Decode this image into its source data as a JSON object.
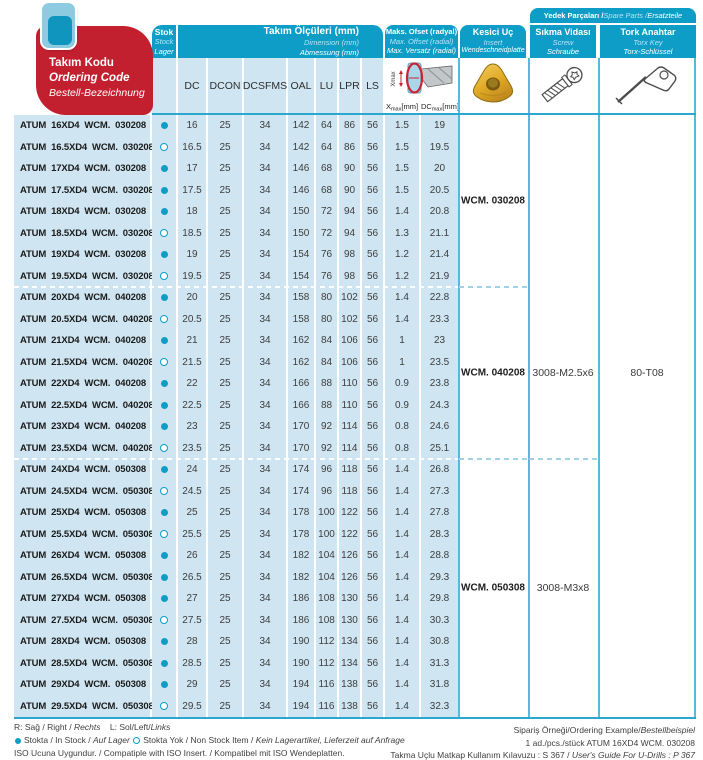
{
  "header": {
    "ordering_code": {
      "line1": "Takım Kodu",
      "line2": "Ordering Code",
      "line3": "Bestell-Bezeichnung"
    },
    "stock": {
      "line1": "Stok",
      "line2": "Stock",
      "line3": "Lager"
    },
    "dimensions": {
      "line1": "Takım Ölçüleri (mm)",
      "line2": "Dimension (mm)",
      "line3": "Abmessung (mm)"
    },
    "offset": {
      "line1": "Maks. Ofset (radyal)",
      "line2": "Max. Offset (radial)",
      "line3": "Max. Versatz (radial)"
    },
    "insert": {
      "line1": "Kesici Uç",
      "line2": "Insert",
      "line3": "Wendeschneidplatte"
    },
    "spare_parts_segments": [
      {
        "t": "Yedek Parçaları / ",
        "s": "b"
      },
      {
        "t": "Spare Parts / ",
        "s": "li"
      },
      {
        "t": "Ersatzteile",
        "s": "i"
      }
    ],
    "screw": {
      "line1": "Sıkma Vidası",
      "line2": "Screw",
      "line3": "Schraube"
    },
    "torx": {
      "line1": "Tork Anahtar",
      "line2": "Torx Key",
      "line3": "Torx-Schlüssel"
    },
    "columns": [
      "DC",
      "DCON",
      "DCSFMS",
      "OAL",
      "LU",
      "LPR",
      "LS"
    ],
    "offset_sub": {
      "x_base": "X",
      "x_sub": "max",
      "x_unit": "[mm]",
      "dc_base": "DC",
      "dc_sub": "max",
      "dc_unit": "[mm]"
    },
    "offset_diagram_label": "Xmax"
  },
  "groups": [
    {
      "insert_code": "WCM. 030208",
      "rows": [
        {
          "code": "ATUM 16XD4 WCM. 030208",
          "in_stock": true,
          "values": [
            16,
            25,
            34,
            142,
            64,
            86,
            56,
            1.5,
            19
          ]
        },
        {
          "code": "ATUM 16.5XD4 WCM. 030208",
          "in_stock": false,
          "values": [
            16.5,
            25,
            34,
            142,
            64,
            86,
            56,
            1.5,
            19.5
          ]
        },
        {
          "code": "ATUM 17XD4 WCM. 030208",
          "in_stock": true,
          "values": [
            17,
            25,
            34,
            146,
            68,
            90,
            56,
            1.5,
            20
          ]
        },
        {
          "code": "ATUM 17.5XD4 WCM. 030208",
          "in_stock": true,
          "values": [
            17.5,
            25,
            34,
            146,
            68,
            90,
            56,
            1.5,
            20.5
          ]
        },
        {
          "code": "ATUM 18XD4 WCM. 030208",
          "in_stock": true,
          "values": [
            18,
            25,
            34,
            150,
            72,
            94,
            56,
            1.4,
            20.8
          ]
        },
        {
          "code": "ATUM 18.5XD4 WCM. 030208",
          "in_stock": false,
          "values": [
            18.5,
            25,
            34,
            150,
            72,
            94,
            56,
            1.3,
            21.1
          ]
        },
        {
          "code": "ATUM 19XD4 WCM. 030208",
          "in_stock": true,
          "values": [
            19,
            25,
            34,
            154,
            76,
            98,
            56,
            1.2,
            21.4
          ]
        },
        {
          "code": "ATUM 19.5XD4 WCM. 030208",
          "in_stock": false,
          "values": [
            19.5,
            25,
            34,
            154,
            76,
            98,
            56,
            1.2,
            21.9
          ]
        }
      ]
    },
    {
      "insert_code": "WCM. 040208",
      "rows": [
        {
          "code": "ATUM 20XD4 WCM. 040208",
          "in_stock": true,
          "values": [
            20,
            25,
            34,
            158,
            80,
            102,
            56,
            1.4,
            22.8
          ]
        },
        {
          "code": "ATUM 20.5XD4 WCM. 040208",
          "in_stock": false,
          "values": [
            20.5,
            25,
            34,
            158,
            80,
            102,
            56,
            1.4,
            23.3
          ]
        },
        {
          "code": "ATUM 21XD4 WCM. 040208",
          "in_stock": true,
          "values": [
            21,
            25,
            34,
            162,
            84,
            106,
            56,
            1,
            23
          ]
        },
        {
          "code": "ATUM 21.5XD4 WCM. 040208",
          "in_stock": false,
          "values": [
            21.5,
            25,
            34,
            162,
            84,
            106,
            56,
            1,
            23.5
          ]
        },
        {
          "code": "ATUM 22XD4 WCM. 040208",
          "in_stock": true,
          "values": [
            22,
            25,
            34,
            166,
            88,
            110,
            56,
            0.9,
            23.8
          ]
        },
        {
          "code": "ATUM 22.5XD4 WCM. 040208",
          "in_stock": true,
          "values": [
            22.5,
            25,
            34,
            166,
            88,
            110,
            56,
            0.9,
            24.3
          ]
        },
        {
          "code": "ATUM 23XD4 WCM. 040208",
          "in_stock": true,
          "values": [
            23,
            25,
            34,
            170,
            92,
            114,
            56,
            0.8,
            24.6
          ]
        },
        {
          "code": "ATUM 23.5XD4 WCM. 040208",
          "in_stock": false,
          "values": [
            23.5,
            25,
            34,
            170,
            92,
            114,
            56,
            0.8,
            25.1
          ]
        }
      ]
    },
    {
      "insert_code": "WCM. 050308",
      "rows": [
        {
          "code": "ATUM 24XD4 WCM. 050308",
          "in_stock": true,
          "values": [
            24,
            25,
            34,
            174,
            96,
            118,
            56,
            1.4,
            26.8
          ]
        },
        {
          "code": "ATUM 24.5XD4 WCM. 050308",
          "in_stock": false,
          "values": [
            24.5,
            25,
            34,
            174,
            96,
            118,
            56,
            1.4,
            27.3
          ]
        },
        {
          "code": "ATUM 25XD4 WCM. 050308",
          "in_stock": true,
          "values": [
            25,
            25,
            34,
            178,
            100,
            122,
            56,
            1.4,
            27.8
          ]
        },
        {
          "code": "ATUM 25.5XD4 WCM. 050308",
          "in_stock": false,
          "values": [
            25.5,
            25,
            34,
            178,
            100,
            122,
            56,
            1.4,
            28.3
          ]
        },
        {
          "code": "ATUM 26XD4 WCM. 050308",
          "in_stock": true,
          "values": [
            26,
            25,
            34,
            182,
            104,
            126,
            56,
            1.4,
            28.8
          ]
        },
        {
          "code": "ATUM 26.5XD4 WCM. 050308",
          "in_stock": true,
          "values": [
            26.5,
            25,
            34,
            182,
            104,
            126,
            56,
            1.4,
            29.3
          ]
        },
        {
          "code": "ATUM 27XD4 WCM. 050308",
          "in_stock": true,
          "values": [
            27,
            25,
            34,
            186,
            108,
            130,
            56,
            1.4,
            29.8
          ]
        },
        {
          "code": "ATUM 27.5XD4 WCM. 050308",
          "in_stock": false,
          "values": [
            27.5,
            25,
            34,
            186,
            108,
            130,
            56,
            1.4,
            30.3
          ]
        },
        {
          "code": "ATUM 28XD4 WCM. 050308",
          "in_stock": true,
          "values": [
            28,
            25,
            34,
            190,
            112,
            134,
            56,
            1.4,
            30.8
          ]
        },
        {
          "code": "ATUM 28.5XD4 WCM. 050308",
          "in_stock": true,
          "values": [
            28.5,
            25,
            34,
            190,
            112,
            134,
            56,
            1.4,
            31.3
          ]
        },
        {
          "code": "ATUM 29XD4 WCM. 050308",
          "in_stock": true,
          "values": [
            29,
            25,
            34,
            194,
            116,
            138,
            56,
            1.4,
            31.8
          ]
        },
        {
          "code": "ATUM 29.5XD4 WCM. 050308",
          "in_stock": false,
          "values": [
            29.5,
            25,
            34,
            194,
            116,
            138,
            56,
            1.4,
            32.3
          ]
        }
      ]
    }
  ],
  "spare": {
    "screw_group12": "3008-M2.5x6",
    "screw_group3": "3008-M3x8",
    "torx_all": "80-T08"
  },
  "footer": {
    "left": {
      "line1_segments": [
        {
          "t": "R: Sağ / Right / "
        },
        {
          "t": "Rechts",
          "s": "i"
        },
        {
          "t": "    L: Sol/Left/"
        },
        {
          "t": "Links",
          "s": "i"
        }
      ],
      "line2a_segments": [
        {
          "t": "Stokta / In Stock / "
        },
        {
          "t": "Auf Lager",
          "s": "i"
        }
      ],
      "line2b_segments": [
        {
          "t": "Stokta Yok / Non Stock Item / "
        },
        {
          "t": "Kein Lagerartikel, Lieferzeit auf Anfrage",
          "s": "i"
        }
      ],
      "line3": "ISO Ucuna Uygundur. / Compatiple with ISO Insert. / Kompatibel mit ISO Wendeplatten."
    },
    "right": {
      "line1_segments": [
        {
          "t": "Sipariş Örneği/Ordering Example/"
        },
        {
          "t": "Bestellbeispiel",
          "s": "i"
        }
      ],
      "line2": "1 ad./pcs./stück ATUM 16XD4 WCM. 030208",
      "line3_segments": [
        {
          "t": "Takma Uçlu Matkap Kullanım Kılavuzu : S 367 / "
        },
        {
          "t": "User's Guide For U-Drills : P 367",
          "s": "i"
        }
      ]
    }
  },
  "icons": {
    "tab_icon": "page-tab",
    "offset_diagram": "drill-radial-offset-diagram",
    "insert_icon": "wcm-carbide-insert",
    "screw_icon": "clamping-torx-screw",
    "torx_key_icon": "torx-key",
    "in_stock_marker": "filled-dot",
    "non_stock_marker": "open-dot"
  },
  "colors": {
    "teal": "#0d9dc7",
    "red": "#c3202f",
    "row_blue": "#cfe6f2",
    "insert_gold": "#e2ab27"
  }
}
